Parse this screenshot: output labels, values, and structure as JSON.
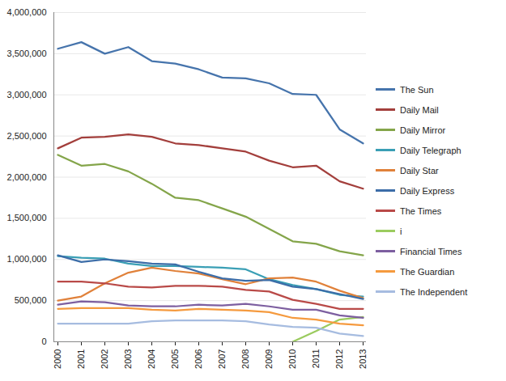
{
  "chart_data": {
    "type": "line",
    "categories": [
      "2000",
      "2001",
      "2002",
      "2003",
      "2004",
      "2005",
      "2006",
      "2007",
      "2008",
      "2009",
      "2010",
      "2011",
      "2012",
      "2013"
    ],
    "series": [
      {
        "name": "The Sun",
        "color": "#4674AC",
        "values": [
          3560000,
          3640000,
          3500000,
          3580000,
          3410000,
          3380000,
          3310000,
          3210000,
          3200000,
          3140000,
          3010000,
          3000000,
          2580000,
          2410000
        ]
      },
      {
        "name": "Daily Mail",
        "color": "#A33F3C",
        "values": [
          2350000,
          2480000,
          2490000,
          2520000,
          2490000,
          2410000,
          2390000,
          2350000,
          2310000,
          2200000,
          2120000,
          2140000,
          1950000,
          1860000
        ]
      },
      {
        "name": "Daily Mirror",
        "color": "#84A54A",
        "values": [
          2270000,
          2140000,
          2160000,
          2070000,
          1920000,
          1750000,
          1720000,
          1620000,
          1520000,
          1370000,
          1220000,
          1190000,
          1100000,
          1050000
        ]
      },
      {
        "name": "Daily Telegraph",
        "color": "#3A9FB5",
        "values": [
          1040000,
          1020000,
          1010000,
          950000,
          920000,
          920000,
          910000,
          900000,
          880000,
          760000,
          690000,
          640000,
          570000,
          550000
        ]
      },
      {
        "name": "Daily Star",
        "color": "#E0813A",
        "values": [
          500000,
          550000,
          710000,
          840000,
          900000,
          860000,
          830000,
          760000,
          700000,
          770000,
          780000,
          730000,
          620000,
          530000
        ]
      },
      {
        "name": "Daily Express",
        "color": "#3C6DA8",
        "values": [
          1050000,
          970000,
          1000000,
          980000,
          950000,
          940000,
          850000,
          770000,
          740000,
          750000,
          670000,
          640000,
          580000,
          520000
        ]
      },
      {
        "name": "The Times",
        "color": "#B94A48",
        "values": [
          730000,
          730000,
          710000,
          670000,
          660000,
          680000,
          680000,
          670000,
          630000,
          610000,
          510000,
          460000,
          400000,
          400000
        ]
      },
      {
        "name": "i",
        "color": "#9BCB5F",
        "values": [
          null,
          null,
          null,
          null,
          null,
          null,
          null,
          null,
          null,
          null,
          0,
          130000,
          270000,
          300000
        ]
      },
      {
        "name": "Financial Times",
        "color": "#7D5FA0",
        "values": [
          450000,
          490000,
          480000,
          440000,
          430000,
          430000,
          450000,
          440000,
          460000,
          430000,
          390000,
          390000,
          320000,
          290000
        ]
      },
      {
        "name": "The Guardian",
        "color": "#F59A3E",
        "values": [
          400000,
          410000,
          410000,
          410000,
          390000,
          380000,
          400000,
          390000,
          380000,
          360000,
          290000,
          270000,
          220000,
          200000
        ]
      },
      {
        "name": "The Independent",
        "color": "#A6BCE0",
        "values": [
          220000,
          220000,
          220000,
          220000,
          250000,
          260000,
          260000,
          260000,
          250000,
          210000,
          180000,
          170000,
          100000,
          70000
        ]
      }
    ],
    "ylim": [
      0,
      4000000
    ],
    "yticks": [
      0,
      {
        "value": 500000,
        "label": "500,000"
      },
      {
        "value": 1000000,
        "label": "1,000,000"
      },
      {
        "value": 1500000,
        "label": "1,500,000"
      },
      {
        "value": 2000000,
        "label": "2,000,000"
      },
      {
        "value": 2500000,
        "label": "2,500,000"
      },
      {
        "value": 3000000,
        "label": "3,000,000"
      },
      {
        "value": 3500000,
        "label": "3,500,000"
      },
      {
        "value": 4000000,
        "label": "4,000,000"
      }
    ],
    "grid": true,
    "legend": "right"
  }
}
